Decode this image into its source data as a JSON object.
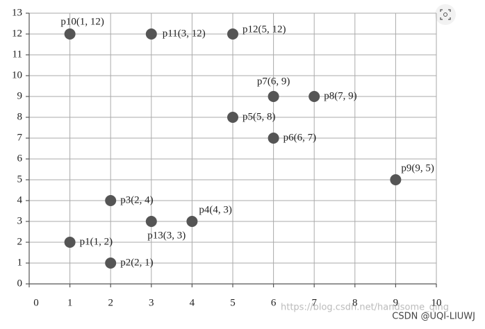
{
  "chart_data": {
    "type": "scatter",
    "x": [
      1,
      2,
      2,
      4,
      5,
      6,
      6,
      7,
      9,
      1,
      3,
      5,
      3
    ],
    "values": [
      2,
      1,
      4,
      3,
      8,
      7,
      9,
      9,
      5,
      12,
      12,
      12,
      3
    ],
    "labels": [
      "p1(1, 2)",
      "p2(2, 1)",
      "p3(2, 4)",
      "p4(4, 3)",
      "p5(5, 8)",
      "p6(6, 7)",
      "p7(6, 9)",
      "p8(7, 9)",
      "p9(9, 5)",
      "p10(1, 12)",
      "p11(3, 12)",
      "p12(5, 12)",
      "p13(3, 3)"
    ],
    "color": "#555555",
    "xlim": [
      0,
      10
    ],
    "xticks": [
      0,
      1,
      2,
      3,
      4,
      5,
      6,
      7,
      8,
      9,
      10
    ],
    "ylim": [
      0,
      13
    ],
    "yticks": [
      0,
      1,
      2,
      3,
      4,
      5,
      6,
      7,
      8,
      9,
      10,
      11,
      12,
      13
    ],
    "grid": true
  },
  "watermark": {
    "url": "https://blog.csdn.net/handsome_qing",
    "credit": "CSDN @UQI-LIUWJ"
  }
}
